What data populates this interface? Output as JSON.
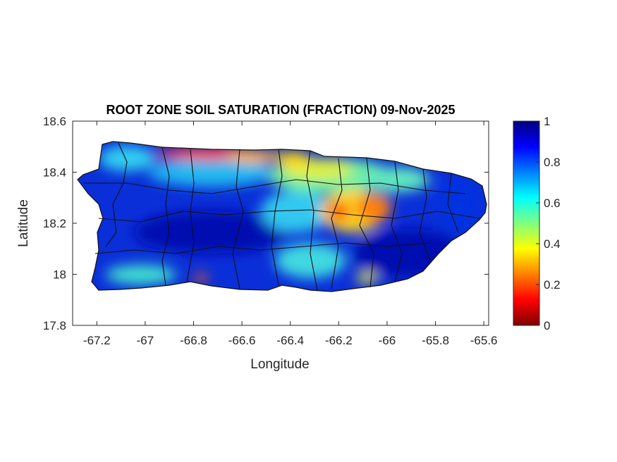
{
  "chart_data": {
    "type": "heatmap",
    "title": "ROOT ZONE SOIL SATURATION (FRACTION) 09-Nov-2025",
    "xlabel": "Longitude",
    "ylabel": "Latitude",
    "xlim": [
      -67.3,
      -65.58
    ],
    "ylim": [
      17.8,
      18.6
    ],
    "xticks": [
      "-67.2",
      "-67",
      "-66.8",
      "-66.6",
      "-66.4",
      "-66.2",
      "-66",
      "-65.8",
      "-65.6"
    ],
    "xtick_values": [
      -67.2,
      -67,
      -66.8,
      -66.6,
      -66.4,
      -66.2,
      -66,
      -65.8,
      -65.6
    ],
    "yticks": [
      "17.8",
      "18",
      "18.2",
      "18.4",
      "18.6"
    ],
    "ytick_values": [
      17.8,
      18.0,
      18.2,
      18.4,
      18.6
    ],
    "colorbar": {
      "colormap": "jet",
      "range": [
        0,
        1
      ],
      "ticks": [
        "0",
        "0.2",
        "0.4",
        "0.6",
        "0.8",
        "1"
      ],
      "tick_values": [
        0,
        0.2,
        0.4,
        0.6,
        0.8,
        1
      ]
    },
    "region": "Puerto Rico",
    "pattern": "Mostly high saturation (0.8-1) in west, south-central and east; low values (0.1-0.3) along north-central coast and in east-central interior around -66.2 to -66.0 lon, 18.2-18.3 lat",
    "grid": false
  }
}
